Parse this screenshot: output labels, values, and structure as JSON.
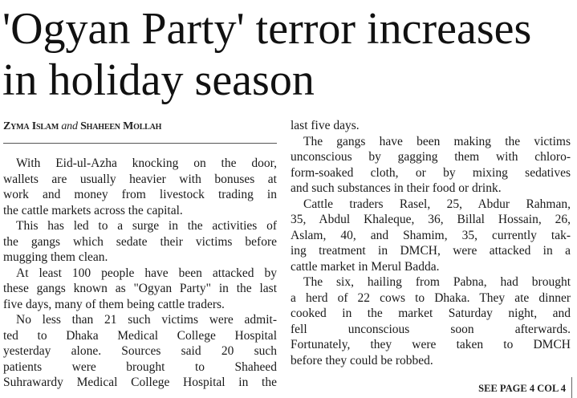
{
  "headline": {
    "line1": "'Ogyan Party' terror increases",
    "line2": "in holiday season"
  },
  "byline": {
    "author1": "Zyma Islam",
    "conjunction": "and",
    "author2": "Shaheen Mollah"
  },
  "left_column": [
    {
      "continued": false,
      "lines": [
        "With Eid-ul-Azha knocking on the door,",
        "wallets are usually heavier with bonuses at",
        "work and money from livestock trading in",
        "the cattle markets across the capital."
      ],
      "ends": true
    },
    {
      "continued": false,
      "lines": [
        "This has led to a surge in the activities of",
        "the gangs which sedate their victims before",
        "mugging them clean."
      ],
      "ends": true
    },
    {
      "continued": false,
      "lines": [
        "At least 100 people have been attacked by",
        "these gangs known as \"Ogyan Party\" in the last",
        "five days, many of them being cattle traders."
      ],
      "ends": true
    },
    {
      "continued": false,
      "lines": [
        "No less than 21 such victims were admit-",
        "ted to Dhaka Medical College Hospital",
        "yesterday alone. Sources said 20 such",
        "patients were brought to Shaheed",
        "Suhrawardy Medical College Hospital in the"
      ],
      "ends": false
    }
  ],
  "right_column": [
    {
      "continued": true,
      "lines": [
        "last five days."
      ],
      "ends": true
    },
    {
      "continued": false,
      "lines": [
        "The gangs have been making the victims",
        "unconscious by gagging them with chloro-",
        "form-soaked cloth, or by mixing sedatives",
        "and such substances in their food or drink."
      ],
      "ends": true
    },
    {
      "continued": false,
      "lines": [
        "Cattle traders Rasel, 25, Abdur Rahman,",
        "35, Abdul Khaleque, 36, Billal Hossain, 26,",
        "Aslam, 40, and Shamim, 35, currently tak-",
        "ing treatment in DMCH, were attacked in a",
        "cattle market in Merul Badda."
      ],
      "ends": true
    },
    {
      "continued": false,
      "lines": [
        "The six, hailing from Pabna, had brought",
        "a herd of 22 cows to Dhaka. They ate dinner",
        "cooked in the market Saturday night, and",
        "fell unconscious soon afterwards.",
        "Fortunately, they were taken to DMCH",
        "before they could be robbed."
      ],
      "ends": true
    }
  ],
  "jump": "SEE PAGE 4 COL 4"
}
